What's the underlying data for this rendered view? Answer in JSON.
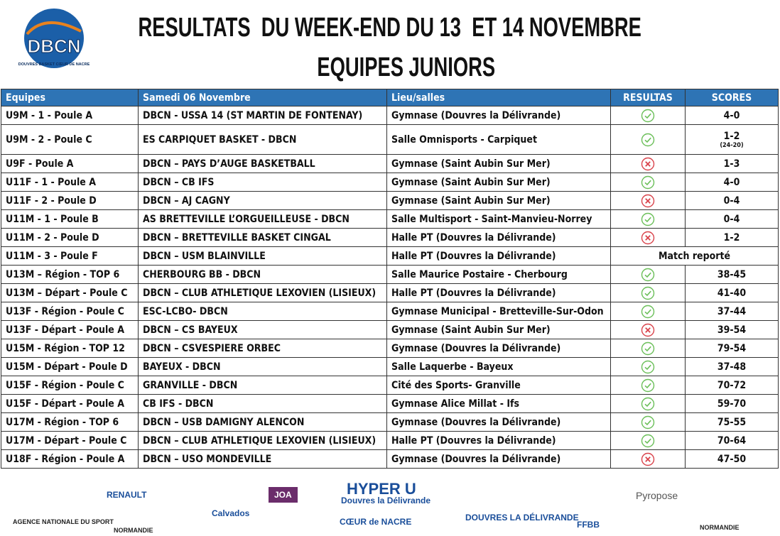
{
  "header": {
    "title": "RESULTATS  DU WEEK-END DU 13  ET 14 NOVEMBRE",
    "subtitle": "EQUIPES JUNIORS",
    "logo": {
      "name": "DBCN",
      "tagline": "DOUVRES BASKET CŒUR DE NACRE"
    }
  },
  "table": {
    "columns": [
      "Equipes",
      "Samedi 06 Novembre",
      "Lieu/salles",
      "RESULTAS",
      "SCORES"
    ],
    "rows": [
      {
        "team": "U9M - 1 - Poule A",
        "match": "DBCN - USSA 14 (ST MARTIN DE FONTENAY)",
        "venue": "Gymnase (Douvres la Délivrande)",
        "result": "win",
        "score": "4-0"
      },
      {
        "team": "U9M - 2 - Poule C",
        "match": "ES CARPIQUET BASKET - DBCN",
        "venue": "Salle Omnisports - Carpiquet",
        "result": "win",
        "score": "1-2",
        "score_detail": "(24-20)"
      },
      {
        "team": "U9F - Poule A",
        "match": "DBCN – PAYS D’AUGE BASKETBALL",
        "venue": "Gymnase (Saint Aubin Sur Mer)",
        "result": "loss",
        "score": "1-3"
      },
      {
        "team": "U11F - 1 - Poule A",
        "match": "DBCN – CB IFS",
        "venue": "Gymnase (Saint Aubin Sur Mer)",
        "result": "win",
        "score": "4-0"
      },
      {
        "team": "U11F - 2 - Poule D",
        "match": "DBCN – AJ CAGNY",
        "venue": "Gymnase (Saint Aubin Sur Mer)",
        "result": "loss",
        "score": "0-4"
      },
      {
        "team": "U11M - 1 - Poule B",
        "match": "AS BRETTEVILLE L’ORGUEILLEUSE - DBCN",
        "venue": "Salle Multisport - Saint-Manvieu-Norrey",
        "result": "win",
        "score": "0-4"
      },
      {
        "team": "U11M - 2 - Poule D",
        "match": "DBCN – BRETTEVILLE BASKET CINGAL",
        "venue": "Halle PT (Douvres la Délivrande)",
        "result": "loss",
        "score": "1-2"
      },
      {
        "team": "U11M - 3 - Poule F",
        "match": "DBCN – USM BLAINVILLE",
        "venue": "Halle PT (Douvres la Délivrande)",
        "note": "Match reporté"
      },
      {
        "team": "U13M – Région - TOP 6",
        "match": "CHERBOURG BB - DBCN",
        "venue": "Salle Maurice Postaire - Cherbourg",
        "result": "win",
        "score": "38-45"
      },
      {
        "team": "U13M – Départ - Poule C",
        "match": "DBCN – CLUB ATHLETIQUE LEXOVIEN (LISIEUX)",
        "venue": "Halle PT (Douvres la Délivrande)",
        "result": "win",
        "score": "41-40"
      },
      {
        "team": "U13F - Région - Poule C",
        "match": "ESC-LCBO- DBCN",
        "venue": "Gymnase Municipal - Bretteville-Sur-Odon",
        "result": "win",
        "score": "37-44"
      },
      {
        "team": "U13F - Départ - Poule A",
        "match": "DBCN – CS BAYEUX",
        "venue": "Gymnase (Saint Aubin Sur Mer)",
        "result": "loss",
        "score": "39-54"
      },
      {
        "team": "U15M - Région - TOP 12",
        "match": "DBCN – CSVESPIERE ORBEC",
        "venue": "Gymnase (Douvres la Délivrande)",
        "result": "win",
        "score": "79-54"
      },
      {
        "team": "U15M - Départ - Poule D",
        "match": "BAYEUX - DBCN",
        "venue": "Salle Laquerbe - Bayeux",
        "result": "win",
        "score": "37-48"
      },
      {
        "team": "U15F - Région - Poule C",
        "match": "GRANVILLE - DBCN",
        "venue": "Cité des Sports- Granville",
        "result": "win",
        "score": "70-72"
      },
      {
        "team": "U15F - Départ - Poule A",
        "match": "CB IFS - DBCN",
        "venue": "Gymnase Alice Millat - Ifs",
        "result": "win",
        "score": "59-70"
      },
      {
        "team": "U17M - Région - TOP 6",
        "match": "DBCN – USB DAMIGNY ALENCON",
        "venue": "Gymnase (Douvres la Délivrande)",
        "result": "win",
        "score": "75-55"
      },
      {
        "team": "U17M - Départ - Poule C",
        "match": "DBCN – CLUB ATHLETIQUE LEXOVIEN (LISIEUX)",
        "venue": "Halle PT (Douvres la Délivrande)",
        "result": "win",
        "score": "70-64"
      },
      {
        "team": "U18F - Région - Poule A",
        "match": "DBCN – USO MONDEVILLE",
        "venue": "Gymnase (Douvres la Délivrande)",
        "result": "loss",
        "score": "47-50"
      }
    ]
  },
  "sponsors": [
    "RENAULT",
    "JOA",
    "HYPER U",
    "Douvres la Délivrande",
    "Pyropose",
    "AGENCE NATIONALE DU SPORT",
    "NORMANDIE",
    "Calvados",
    "CŒUR de NACRE",
    "DOUVRES LA DÉLIVRANDE",
    "FFBB",
    "NORMANDIE"
  ]
}
